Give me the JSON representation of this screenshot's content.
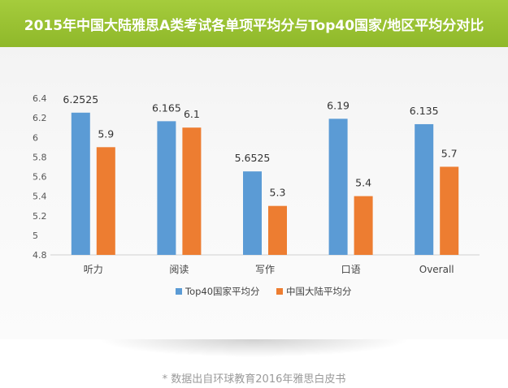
{
  "header": {
    "title": "2015年中国大陆雅思A类考试各单项平均分与Top40国家/地区平均分对比"
  },
  "footnote": "* 数据出自环球教育2016年雅思白皮书",
  "chart_data": {
    "type": "bar",
    "title": "2015年中国大陆雅思A类考试各单项平均分与Top40国家/地区平均分对比",
    "categories": [
      "听力",
      "阅读",
      "写作",
      "口语",
      "Overall"
    ],
    "series": [
      {
        "name": "Top40国家平均分",
        "color": "#5b9bd5",
        "values": [
          6.2525,
          6.165,
          5.6525,
          6.19,
          6.135
        ],
        "labels": [
          "6.2525",
          "6.165",
          "5.6525",
          "6.19",
          "6.135"
        ]
      },
      {
        "name": "中国大陆平均分",
        "color": "#ed7d31",
        "values": [
          5.9,
          6.1,
          5.3,
          5.4,
          5.7
        ],
        "labels": [
          "5.9",
          "6.1",
          "5.3",
          "5.4",
          "5.7"
        ]
      }
    ],
    "ylim": [
      4.8,
      6.4
    ],
    "yticks": [
      "4.8",
      "5",
      "5.2",
      "5.4",
      "5.6",
      "5.8",
      "6",
      "6.2",
      "6.4"
    ],
    "xlabel": "",
    "ylabel": "",
    "grid": false,
    "legend": "bottom"
  }
}
